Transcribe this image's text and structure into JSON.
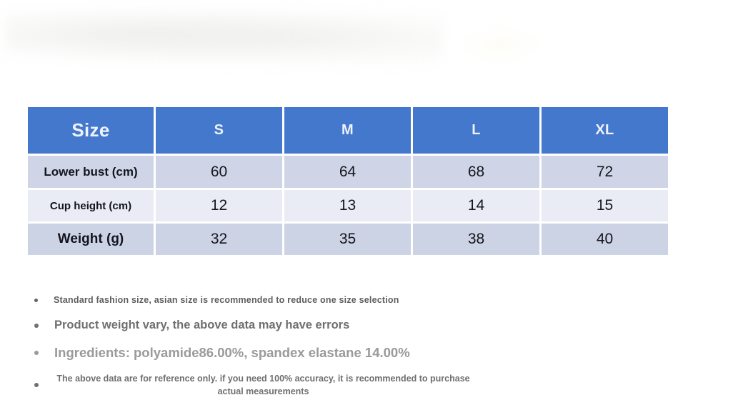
{
  "table": {
    "size_label": "Size",
    "columns": [
      "S",
      "M",
      "L",
      "XL"
    ],
    "rows": [
      {
        "label": "Lower bust (cm)",
        "values": [
          "60",
          "64",
          "68",
          "72"
        ]
      },
      {
        "label": "Cup height (cm)",
        "values": [
          "12",
          "13",
          "14",
          "15"
        ]
      },
      {
        "label": "Weight (g)",
        "values": [
          "32",
          "35",
          "38",
          "40"
        ]
      }
    ]
  },
  "notes": [
    "Standard fashion size, asian size is recommended to reduce one size selection",
    "Product weight vary, the above data may have errors",
    "Ingredients: polyamide86.00%, spandex elastane 14.00%",
    "The above data are for reference only. if you need 100% accuracy, it is recommended to purchase actual measurements"
  ],
  "colors": {
    "header_bg": "#4478cd",
    "header_text": "#edf2fb",
    "row_1_bg": "#cfd5e7",
    "row_2_bg": "#e9ecf4",
    "row_3_bg": "#ccd3e5",
    "label_text": "#14141f",
    "value_text": "#16161c",
    "note_gray": "#6f6f6f",
    "note_light_gray": "#9a9a9a"
  }
}
